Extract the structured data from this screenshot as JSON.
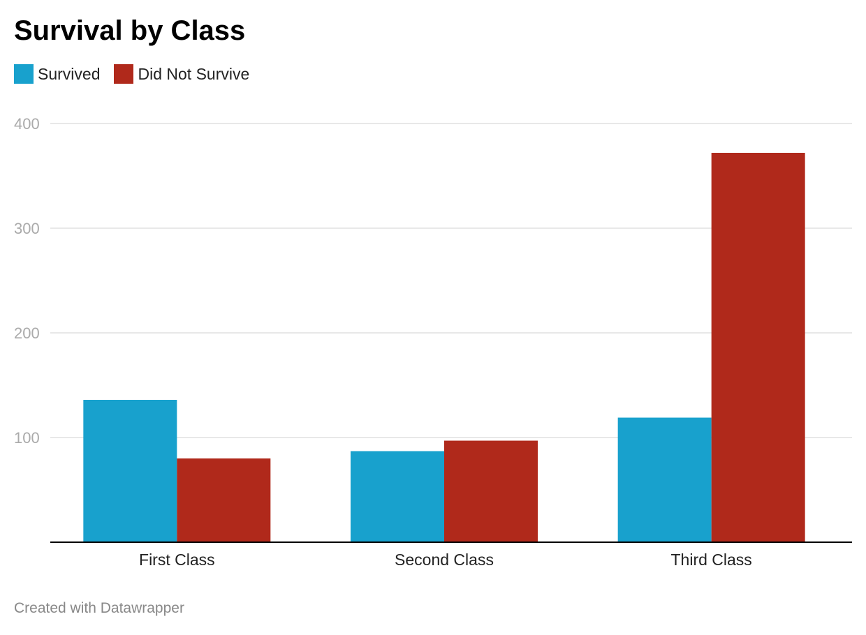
{
  "chart_data": {
    "type": "bar",
    "title": "Survival by Class",
    "categories": [
      "First Class",
      "Second Class",
      "Third Class"
    ],
    "series": [
      {
        "name": "Survived",
        "color": "#18a1cd",
        "values": [
          136,
          87,
          119
        ]
      },
      {
        "name": "Did Not Survive",
        "color": "#b0291b",
        "values": [
          80,
          97,
          372
        ]
      }
    ],
    "yticks": [
      100,
      200,
      300,
      400
    ],
    "ylim": [
      0,
      400
    ],
    "grid": true,
    "legend_position": "top-left"
  },
  "footer": "Created with Datawrapper"
}
